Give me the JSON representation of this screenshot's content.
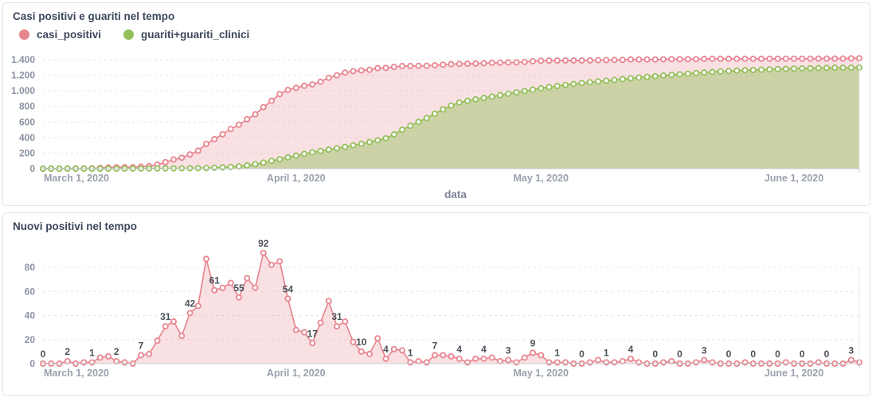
{
  "chart_data": [
    {
      "type": "area",
      "title": "Casi positivi e guariti nel tempo",
      "x_axis_label": "data",
      "x_range": [
        "March 1, 2020",
        "June 9, 2020"
      ],
      "x_unit": "day",
      "ylim": [
        0,
        1430
      ],
      "grid": "dashed-horizontal",
      "legend_position": "top-left",
      "y_ticks": [
        {
          "v": 0,
          "label": "0"
        },
        {
          "v": 200,
          "label": "200"
        },
        {
          "v": 400,
          "label": "400"
        },
        {
          "v": 600,
          "label": "600"
        },
        {
          "v": 800,
          "label": "800"
        },
        {
          "v": 1000,
          "label": "1.000"
        },
        {
          "v": 1200,
          "label": "1.200"
        },
        {
          "v": 1400,
          "label": "1.400"
        }
      ],
      "months": [
        {
          "day": 0,
          "label": "March 1, 2020"
        },
        {
          "day": 31,
          "label": "April 1, 2020"
        },
        {
          "day": 61,
          "label": "May 1, 2020"
        },
        {
          "day": 92,
          "label": "June 1, 2020"
        }
      ],
      "series": [
        {
          "name": "casi_positivi",
          "color": "#e8868f",
          "fill": "rgba(232,134,143,0.25)",
          "values": [
            0,
            0,
            0,
            2,
            2,
            3,
            4,
            9,
            15,
            17,
            18,
            18,
            25,
            33,
            52,
            83,
            118,
            141,
            183,
            231,
            318,
            379,
            442,
            509,
            564,
            635,
            698,
            790,
            872,
            957,
            1011,
            1039,
            1065,
            1082,
            1116,
            1168,
            1199,
            1234,
            1252,
            1262,
            1270,
            1291,
            1295,
            1307,
            1318,
            1319,
            1321,
            1322,
            1329,
            1336,
            1342,
            1346,
            1347,
            1351,
            1355,
            1360,
            1362,
            1365,
            1366,
            1371,
            1380,
            1387,
            1388,
            1389,
            1390,
            1390,
            1390,
            1391,
            1394,
            1395,
            1396,
            1398,
            1402,
            1403,
            1403,
            1403,
            1404,
            1406,
            1406,
            1406,
            1407,
            1410,
            1411,
            1411,
            1411,
            1411,
            1412,
            1412,
            1412,
            1412,
            1412,
            1413,
            1413,
            1413,
            1413,
            1414,
            1414,
            1414,
            1414,
            1417,
            1418
          ]
        },
        {
          "name": "guariti+guariti_clinici",
          "color": "#94c05c",
          "fill": "rgba(148,192,92,0.45)",
          "values": [
            0,
            0,
            0,
            0,
            0,
            0,
            0,
            0,
            0,
            0,
            1,
            1,
            1,
            2,
            2,
            3,
            3,
            4,
            5,
            6,
            8,
            12,
            16,
            22,
            30,
            42,
            58,
            78,
            100,
            122,
            145,
            168,
            190,
            210,
            228,
            245,
            262,
            280,
            300,
            320,
            342,
            365,
            390,
            440,
            500,
            550,
            600,
            650,
            705,
            760,
            810,
            850,
            872,
            890,
            908,
            926,
            944,
            962,
            980,
            998,
            1015,
            1032,
            1048,
            1062,
            1076,
            1088,
            1100,
            1110,
            1120,
            1130,
            1140,
            1150,
            1160,
            1170,
            1179,
            1188,
            1196,
            1204,
            1212,
            1220,
            1228,
            1235,
            1242,
            1248,
            1254,
            1259,
            1264,
            1268,
            1272,
            1276,
            1279,
            1282,
            1285,
            1288,
            1290,
            1292,
            1294,
            1296,
            1297,
            1298,
            1300
          ]
        }
      ]
    },
    {
      "type": "area",
      "title": "Nuovi positivi nel tempo",
      "x_range": [
        "March 1, 2020",
        "June 9, 2020"
      ],
      "x_unit": "day",
      "ylim": [
        0,
        96
      ],
      "grid": "dashed-horizontal",
      "y_ticks": [
        {
          "v": 0,
          "label": "0"
        },
        {
          "v": 20,
          "label": "20"
        },
        {
          "v": 40,
          "label": "40"
        },
        {
          "v": 60,
          "label": "60"
        },
        {
          "v": 80,
          "label": "80"
        }
      ],
      "months": [
        {
          "day": 0,
          "label": "March 1, 2020"
        },
        {
          "day": 31,
          "label": "April 1, 2020"
        },
        {
          "day": 61,
          "label": "May 1, 2020"
        },
        {
          "day": 92,
          "label": "June 1, 2020"
        }
      ],
      "series": [
        {
          "name": "nuovi_positivi",
          "color": "#e8868f",
          "fill": "rgba(232,134,143,0.25)",
          "values": [
            0,
            0,
            0,
            2,
            0,
            1,
            1,
            5,
            6,
            2,
            1,
            0,
            7,
            8,
            19,
            31,
            35,
            23,
            42,
            48,
            87,
            61,
            63,
            67,
            55,
            71,
            63,
            92,
            82,
            85,
            54,
            28,
            26,
            17,
            34,
            52,
            31,
            35,
            18,
            10,
            8,
            21,
            4,
            12,
            11,
            1,
            2,
            1,
            7,
            7,
            6,
            4,
            1,
            4,
            4,
            5,
            2,
            3,
            1,
            5,
            9,
            7,
            1,
            1,
            1,
            0,
            0,
            1,
            3,
            1,
            1,
            2,
            4,
            1,
            0,
            0,
            1,
            2,
            0,
            0,
            1,
            3,
            1,
            0,
            0,
            0,
            1,
            0,
            0,
            0,
            0,
            1,
            0,
            0,
            0,
            1,
            0,
            0,
            0,
            3,
            1
          ]
        }
      ],
      "point_labels_every": 3,
      "point_labels": [
        "0",
        "2",
        "1",
        "2",
        "7",
        "31",
        "42",
        "61",
        "55",
        "92",
        "54",
        "17",
        "31",
        "10",
        "4",
        "1",
        "7",
        "4",
        "4",
        "3",
        "9",
        "1",
        "0",
        "1",
        "4",
        "0",
        "0",
        "3",
        "0",
        "0",
        "0",
        "0",
        "0",
        "3"
      ]
    }
  ],
  "style": {
    "title_color": "#3c475c",
    "tick_color": "#8a92a2",
    "month_color": "#99a1ac",
    "point_label_color": "#4b5058",
    "axis_color": "#c8ccd2",
    "grid_color": "#e4e7ea"
  }
}
